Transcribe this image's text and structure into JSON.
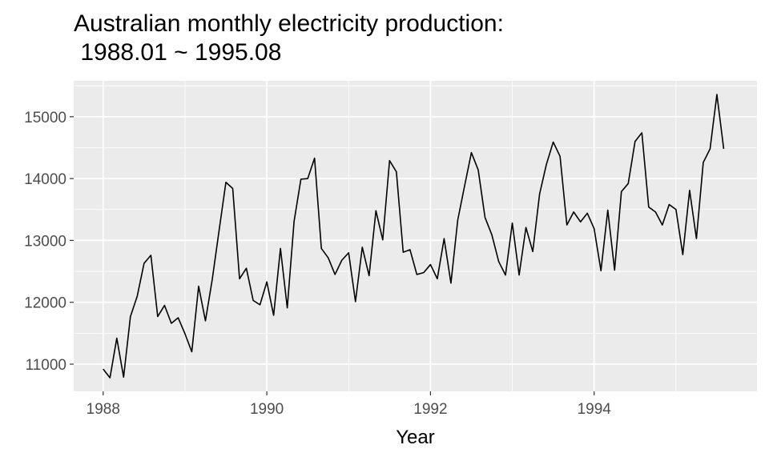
{
  "chart_data": {
    "type": "line",
    "title_line1": "Australian monthly electricity production:",
    "title_line2": " 1988.01 ~ 1995.08",
    "xlabel": "Year",
    "ylabel": "",
    "x_start": 1988.0,
    "x_step_months": 1,
    "x_ticks": [
      1988,
      1990,
      1992,
      1994
    ],
    "x_tick_labels": [
      "1988",
      "1990",
      "1992",
      "1994"
    ],
    "y_ticks": [
      11000,
      12000,
      13000,
      14000,
      15000
    ],
    "y_tick_labels": [
      "11000",
      "12000",
      "13000",
      "14000",
      "15000"
    ],
    "xlim": [
      1987.64,
      1995.99
    ],
    "ylim": [
      10560,
      15580
    ],
    "grid": true,
    "series": [
      {
        "values": [
          10920,
          10780,
          11420,
          10790,
          11770,
          12100,
          12630,
          12760,
          11770,
          11950,
          11660,
          11750,
          11490,
          11200,
          12260,
          11700,
          12370,
          13160,
          13940,
          13840,
          12380,
          12550,
          12030,
          11960,
          12330,
          11790,
          12870,
          11910,
          13310,
          13990,
          14000,
          14330,
          12870,
          12720,
          12450,
          12680,
          12800,
          12010,
          12890,
          12430,
          13480,
          13010,
          14290,
          14110,
          12810,
          12850,
          12450,
          12480,
          12610,
          12380,
          13030,
          12310,
          13330,
          13880,
          14420,
          14140,
          13370,
          13090,
          12660,
          12440,
          13280,
          12440,
          13210,
          12820,
          13750,
          14230,
          14590,
          14360,
          13250,
          13460,
          13300,
          13440,
          13190,
          12510,
          13490,
          12520,
          13790,
          13920,
          14600,
          14740,
          13540,
          13460,
          13250,
          13580,
          13500,
          12770,
          13810,
          13030,
          14260,
          14480,
          15360,
          14480
        ]
      }
    ]
  }
}
